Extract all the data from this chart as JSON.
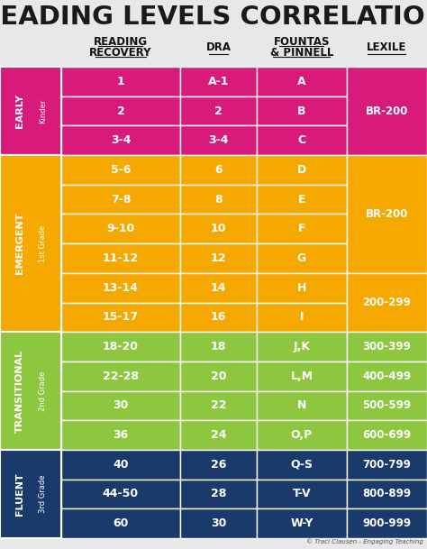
{
  "title": "READING LEVELS CORRELATION",
  "bg_color": "#e8e8e8",
  "title_color": "#1a1a1a",
  "col_headers": [
    {
      "text": "READING\nRECOVERY",
      "underline_each": true
    },
    {
      "text": "DRA",
      "underline_each": false
    },
    {
      "text": "FOUNTAS\n& PINNELL",
      "underline_each": true
    },
    {
      "text": "LEXILE",
      "underline_each": false
    }
  ],
  "sections": [
    {
      "label_top": "EARLY",
      "label_bot": "Kinder",
      "color": "#d81b7a",
      "text_color": "#ffffff",
      "rows": [
        [
          "1",
          "A-1",
          "A",
          ""
        ],
        [
          "2",
          "2",
          "B",
          "BR-200"
        ],
        [
          "3-4",
          "3-4",
          "C",
          ""
        ]
      ],
      "lexile_spans": [
        {
          "text": "BR-200",
          "start": 0,
          "end": 3
        }
      ]
    },
    {
      "label_top": "EMERGENT",
      "label_bot": "1st Grade",
      "color": "#f5a800",
      "text_color": "#ffffff",
      "rows": [
        [
          "5-6",
          "6",
          "D",
          ""
        ],
        [
          "7-8",
          "8",
          "E",
          ""
        ],
        [
          "9-10",
          "10",
          "F",
          ""
        ],
        [
          "11-12",
          "12",
          "G",
          ""
        ],
        [
          "13-14",
          "14",
          "H",
          ""
        ],
        [
          "15-17",
          "16",
          "I",
          ""
        ]
      ],
      "lexile_spans": [
        {
          "text": "BR-200",
          "start": 0,
          "end": 4
        },
        {
          "text": "200-299",
          "start": 4,
          "end": 6
        }
      ]
    },
    {
      "label_top": "TRANSITIONAL",
      "label_bot": "2nd Grade",
      "color": "#8dc63f",
      "text_color": "#ffffff",
      "rows": [
        [
          "18-20",
          "18",
          "J,K",
          "300-399"
        ],
        [
          "22-28",
          "20",
          "L,M",
          "400-499"
        ],
        [
          "30",
          "22",
          "N",
          "500-599"
        ],
        [
          "36",
          "24",
          "O,P",
          "600-699"
        ]
      ],
      "lexile_spans": [
        {
          "text": "300-399",
          "start": 0,
          "end": 1
        },
        {
          "text": "400-499",
          "start": 1,
          "end": 2
        },
        {
          "text": "500-599",
          "start": 2,
          "end": 3
        },
        {
          "text": "600-699",
          "start": 3,
          "end": 4
        }
      ]
    },
    {
      "label_top": "FLUENT",
      "label_bot": "3rd Grade",
      "color": "#1a3a6b",
      "text_color": "#ffffff",
      "rows": [
        [
          "40",
          "26",
          "Q-S",
          "700-799"
        ],
        [
          "44-50",
          "28",
          "T-V",
          "800-899"
        ],
        [
          "60",
          "30",
          "W-Y",
          "900-999"
        ]
      ],
      "lexile_spans": [
        {
          "text": "700-799",
          "start": 0,
          "end": 1
        },
        {
          "text": "800-899",
          "start": 1,
          "end": 2
        },
        {
          "text": "900-999",
          "start": 2,
          "end": 3
        }
      ]
    }
  ],
  "footer": "© Traci Clausen - Engaging Teaching"
}
